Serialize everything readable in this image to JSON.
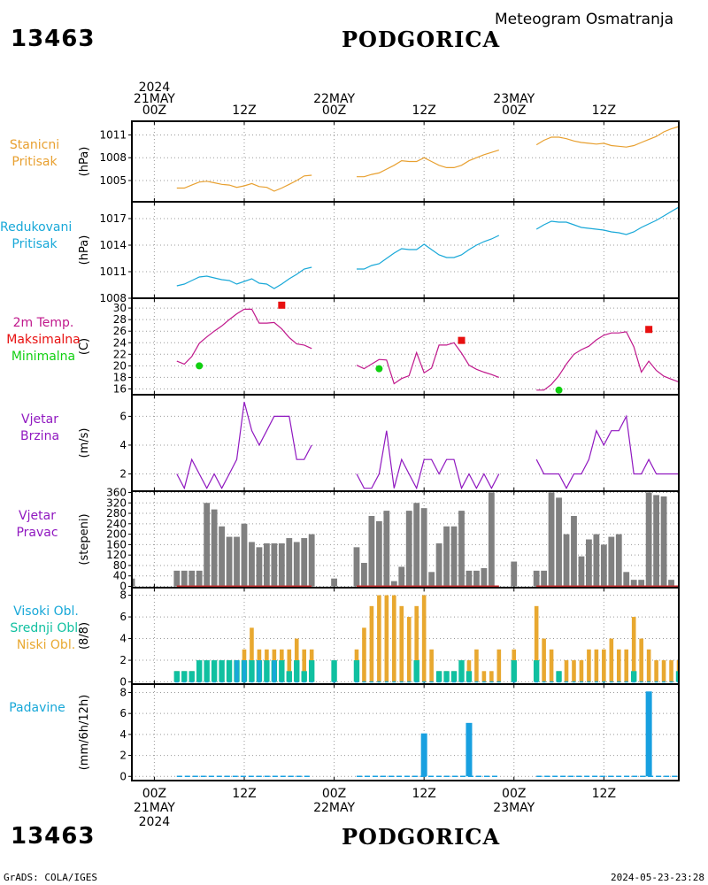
{
  "header": {
    "station_id": "13463",
    "city": "PODGORICA",
    "subtitle": "Meteogram Osmatranja"
  },
  "footer": {
    "station_id": "13463",
    "city": "PODGORICA",
    "credit": "GrADS: COLA/IGES",
    "timestamp": "2024-05-23-23:28"
  },
  "time_axis": {
    "top_labels": [
      {
        "t": 0,
        "lines": [
          "2024",
          "21MAY",
          "00Z"
        ]
      },
      {
        "t": 12,
        "lines": [
          "12Z"
        ]
      },
      {
        "t": 24,
        "lines": [
          "22MAY",
          "00Z"
        ]
      },
      {
        "t": 36,
        "lines": [
          "12Z"
        ]
      },
      {
        "t": 48,
        "lines": [
          "23MAY",
          "00Z"
        ]
      },
      {
        "t": 60,
        "lines": [
          "12Z"
        ]
      }
    ],
    "bottom_labels": [
      {
        "t": 0,
        "lines": [
          "00Z",
          "21MAY",
          "2024"
        ]
      },
      {
        "t": 12,
        "lines": [
          "12Z"
        ]
      },
      {
        "t": 24,
        "lines": [
          "00Z",
          "22MAY"
        ]
      },
      {
        "t": 36,
        "lines": [
          "12Z"
        ]
      },
      {
        "t": 48,
        "lines": [
          "00Z",
          "23MAY"
        ]
      },
      {
        "t": 60,
        "lines": [
          "12Z"
        ]
      }
    ],
    "range": [
      -3,
      70
    ]
  },
  "colors": {
    "station_pressure": "#e8a030",
    "reduced_pressure": "#18a8d8",
    "temperature": "#c0188c",
    "tmax": "#e81010",
    "tmin": "#10d010",
    "wind_speed": "#9018c0",
    "wind_dir": "#808080",
    "wind_dir_base": "#c83030",
    "high_clouds": "#18a8d8",
    "mid_clouds": "#10c0a0",
    "low_clouds": "#e8a830",
    "precip": "#18a0e0"
  },
  "panels": {
    "station_pressure": {
      "label_lines": [
        "Stanicni",
        "Pritisak"
      ],
      "ylabel": "(hPa)"
    },
    "reduced_pressure": {
      "label_lines": [
        "Redukovani",
        "Pritisak"
      ],
      "ylabel": "(hPa)"
    },
    "temperature": {
      "label_lines": [
        "2m Temp.",
        "Maksimalna",
        "Minimalna"
      ],
      "ylabel": "(C)"
    },
    "wind_speed": {
      "label_lines": [
        "Vjetar",
        "Brzina"
      ],
      "ylabel": "(m/s)"
    },
    "wind_dir": {
      "label_lines": [
        "Vjetar",
        "Pravac"
      ],
      "ylabel": "(stepeni)"
    },
    "clouds": {
      "label_lines": [
        "Visoki Obl.",
        "Srednji Obl.",
        "Niski Obl."
      ],
      "ylabel": "(8/8)"
    },
    "precip": {
      "label_lines": [
        "Padavine"
      ],
      "ylabel": "(mm/6h/12h)"
    }
  },
  "chart_data": [
    {
      "type": "line",
      "name": "Stanicni Pritisak",
      "ylabel": "(hPa)",
      "ylim": [
        1002.2,
        1012.8
      ],
      "yticks": [
        1005,
        1008,
        1011
      ],
      "segments": [
        {
          "x": [
            3,
            4,
            5,
            6,
            7,
            8,
            9,
            10,
            11,
            12,
            13,
            14,
            15,
            16,
            17,
            18,
            19,
            20,
            21
          ],
          "y": [
            1004.0,
            1004.0,
            1004.4,
            1004.8,
            1004.9,
            1004.7,
            1004.5,
            1004.4,
            1004.1,
            1004.3,
            1004.6,
            1004.2,
            1004.1,
            1003.6,
            1004.0,
            1004.5,
            1005.0,
            1005.6,
            1005.7
          ]
        },
        {
          "x": [
            27,
            28,
            29,
            30,
            31,
            32,
            33,
            34,
            35,
            36,
            37,
            38,
            39,
            40,
            41,
            42,
            43,
            44,
            45,
            46
          ],
          "y": [
            1005.5,
            1005.5,
            1005.8,
            1006.0,
            1006.5,
            1007.0,
            1007.6,
            1007.5,
            1007.5,
            1008.0,
            1007.5,
            1007.0,
            1006.7,
            1006.7,
            1007.0,
            1007.6,
            1008.0,
            1008.4,
            1008.7,
            1009.0
          ]
        },
        {
          "x": [
            51,
            52,
            53,
            54,
            55,
            56,
            57,
            58,
            59,
            60,
            61,
            62,
            63,
            64,
            65,
            66,
            67,
            68,
            69,
            70
          ],
          "y": [
            1009.7,
            1010.3,
            1010.7,
            1010.7,
            1010.5,
            1010.2,
            1010.0,
            1009.9,
            1009.8,
            1009.9,
            1009.6,
            1009.5,
            1009.4,
            1009.6,
            1010.0,
            1010.4,
            1010.8,
            1011.4,
            1011.8,
            1012.1
          ]
        }
      ]
    },
    {
      "type": "line",
      "name": "Redukovani Pritisak",
      "ylabel": "(hPa)",
      "ylim": [
        1008,
        1018.9
      ],
      "yticks": [
        1008,
        1011,
        1014,
        1017
      ],
      "segments": [
        {
          "x": [
            3,
            4,
            5,
            6,
            7,
            8,
            9,
            10,
            11,
            12,
            13,
            14,
            15,
            16,
            17,
            18,
            19,
            20,
            21
          ],
          "y": [
            1009.4,
            1009.6,
            1010.0,
            1010.4,
            1010.5,
            1010.3,
            1010.1,
            1010.0,
            1009.6,
            1009.9,
            1010.2,
            1009.7,
            1009.6,
            1009.1,
            1009.6,
            1010.2,
            1010.7,
            1011.3,
            1011.5
          ]
        },
        {
          "x": [
            27,
            28,
            29,
            30,
            31,
            32,
            33,
            34,
            35,
            36,
            37,
            38,
            39,
            40,
            41,
            42,
            43,
            44,
            45,
            46
          ],
          "y": [
            1011.3,
            1011.3,
            1011.7,
            1011.9,
            1012.5,
            1013.1,
            1013.6,
            1013.5,
            1013.5,
            1014.1,
            1013.5,
            1012.9,
            1012.6,
            1012.6,
            1012.9,
            1013.5,
            1014.0,
            1014.4,
            1014.7,
            1015.1
          ]
        },
        {
          "x": [
            51,
            52,
            53,
            54,
            55,
            56,
            57,
            58,
            59,
            60,
            61,
            62,
            63,
            64,
            65,
            66,
            67,
            68,
            69,
            70
          ],
          "y": [
            1015.8,
            1016.3,
            1016.7,
            1016.6,
            1016.6,
            1016.3,
            1016.0,
            1015.9,
            1015.8,
            1015.7,
            1015.5,
            1015.4,
            1015.2,
            1015.5,
            1016.0,
            1016.4,
            1016.8,
            1017.3,
            1017.8,
            1018.3
          ]
        }
      ]
    },
    {
      "type": "line",
      "name": "2m Temp.",
      "ylabel": "(C)",
      "ylim": [
        15,
        31.7
      ],
      "yticks": [
        16,
        18,
        20,
        22,
        24,
        26,
        28,
        30
      ],
      "segments": [
        {
          "x": [
            3,
            4,
            5,
            6,
            7,
            8,
            9,
            10,
            11,
            12,
            13,
            14,
            15,
            16,
            17,
            18,
            19,
            20,
            21
          ],
          "y": [
            20.8,
            20.3,
            21.6,
            23.9,
            25.0,
            26.0,
            26.9,
            28.0,
            29.0,
            29.8,
            29.8,
            27.4,
            27.4,
            27.5,
            26.4,
            24.9,
            23.8,
            23.6,
            23.0
          ]
        },
        {
          "x": [
            27,
            28,
            29,
            30,
            31,
            32,
            33,
            34,
            35,
            36,
            37,
            38,
            39,
            40,
            41,
            42,
            43,
            44,
            45,
            46
          ],
          "y": [
            20.1,
            19.5,
            20.3,
            21.1,
            21.0,
            16.9,
            17.8,
            18.3,
            22.3,
            18.8,
            19.6,
            23.6,
            23.6,
            24.0,
            22.2,
            20.1,
            19.4,
            18.9,
            18.5,
            18.0
          ]
        },
        {
          "x": [
            51,
            52,
            53,
            54,
            55,
            56,
            57,
            58,
            59,
            60,
            61,
            62,
            63,
            64,
            65,
            66,
            67,
            68,
            69,
            70
          ],
          "y": [
            15.8,
            15.8,
            16.8,
            18.3,
            20.3,
            22.0,
            22.8,
            23.4,
            24.5,
            25.3,
            25.7,
            25.7,
            25.9,
            23.3,
            18.9,
            20.8,
            19.2,
            18.2,
            17.7,
            17.2
          ]
        }
      ],
      "tmax": [
        {
          "x": 17,
          "y": 30.5
        },
        {
          "x": 41,
          "y": 24.4
        },
        {
          "x": 66,
          "y": 26.3
        }
      ],
      "tmin": [
        {
          "x": 6,
          "y": 20.0
        },
        {
          "x": 30,
          "y": 19.5
        },
        {
          "x": 54,
          "y": 15.8
        }
      ]
    },
    {
      "type": "line",
      "name": "Vjetar Brzina",
      "ylabel": "(m/s)",
      "ylim": [
        0.8,
        7.5
      ],
      "yticks": [
        2,
        4,
        6
      ],
      "segments": [
        {
          "x": [
            3,
            4,
            5,
            6,
            7,
            8,
            9,
            10,
            11,
            12,
            13,
            14,
            15,
            16,
            17,
            18,
            19,
            20,
            21
          ],
          "y": [
            2,
            1,
            3,
            2,
            1,
            2,
            1,
            2,
            3,
            7,
            5,
            4,
            5,
            6,
            6,
            6,
            3,
            3,
            4
          ]
        },
        {
          "x": [
            27,
            28,
            29,
            30,
            31,
            32,
            33,
            34,
            35,
            36,
            37,
            38,
            39,
            40,
            41,
            42,
            43,
            44,
            45,
            46
          ],
          "y": [
            2,
            1,
            1,
            2,
            5,
            1,
            3,
            2,
            1,
            3,
            3,
            2,
            3,
            3,
            1,
            2,
            1,
            2,
            1,
            2
          ]
        },
        {
          "x": [
            51,
            52,
            53,
            54,
            55,
            56,
            57,
            58,
            59,
            60,
            61,
            62,
            63,
            64,
            65,
            66,
            67,
            68,
            69,
            70
          ],
          "y": [
            3,
            2,
            2,
            2,
            1,
            2,
            2,
            3,
            5,
            4,
            5,
            5,
            6,
            2,
            2,
            3,
            2,
            2,
            2,
            2
          ]
        }
      ]
    },
    {
      "type": "bar",
      "name": "Vjetar Pravac",
      "ylabel": "(stepeni)",
      "ylim": [
        -5,
        365
      ],
      "yticks": [
        0,
        40,
        80,
        120,
        160,
        200,
        240,
        280,
        320,
        360
      ],
      "x": [
        -3,
        3,
        4,
        5,
        6,
        7,
        8,
        9,
        10,
        11,
        12,
        13,
        14,
        15,
        16,
        17,
        18,
        19,
        20,
        21,
        24,
        27,
        28,
        29,
        30,
        31,
        32,
        33,
        34,
        35,
        36,
        37,
        38,
        39,
        40,
        41,
        42,
        43,
        44,
        45,
        46,
        48,
        51,
        52,
        53,
        54,
        55,
        56,
        57,
        58,
        59,
        60,
        61,
        62,
        63,
        64,
        65,
        66,
        67,
        68,
        69,
        70
      ],
      "values": [
        30,
        60,
        60,
        60,
        60,
        320,
        295,
        230,
        190,
        190,
        240,
        170,
        150,
        165,
        165,
        165,
        185,
        170,
        185,
        200,
        30,
        150,
        90,
        270,
        250,
        290,
        20,
        75,
        290,
        320,
        300,
        55,
        165,
        230,
        230,
        290,
        60,
        60,
        70,
        360,
        0,
        95,
        60,
        60,
        360,
        340,
        200,
        270,
        115,
        180,
        200,
        160,
        190,
        200,
        55,
        25,
        25,
        360,
        350,
        345,
        25,
        0
      ]
    },
    {
      "type": "bar",
      "name": "Oblacnost",
      "ylabel": "(8/8)",
      "ylim": [
        -0.2,
        8.7
      ],
      "yticks": [
        0,
        2,
        4,
        6,
        8
      ],
      "x": [
        3,
        4,
        5,
        6,
        7,
        8,
        9,
        10,
        11,
        12,
        13,
        14,
        15,
        16,
        17,
        18,
        19,
        20,
        21,
        24,
        27,
        28,
        29,
        30,
        31,
        32,
        33,
        34,
        35,
        36,
        37,
        38,
        39,
        40,
        41,
        42,
        43,
        44,
        45,
        46,
        48,
        51,
        52,
        53,
        54,
        55,
        56,
        57,
        58,
        59,
        60,
        61,
        62,
        63,
        64,
        65,
        66,
        67,
        68,
        69,
        70
      ],
      "series": [
        {
          "name": "Visoki Obl.",
          "values": [
            0,
            0,
            0,
            0,
            0,
            0,
            0,
            0,
            2,
            2,
            0,
            2,
            0,
            2,
            0,
            0,
            0,
            0,
            0,
            0,
            0,
            0,
            0,
            0,
            0,
            0,
            0,
            0,
            0,
            0,
            0,
            0,
            0,
            0,
            0,
            0,
            0,
            0,
            0,
            0,
            0,
            0,
            0,
            0,
            0,
            0,
            0,
            0,
            0,
            0,
            0,
            0,
            0,
            0,
            0,
            0,
            0,
            0,
            0,
            0,
            0
          ]
        },
        {
          "name": "Srednji Obl.",
          "values": [
            1,
            1,
            1,
            2,
            2,
            2,
            2,
            2,
            2,
            2,
            2,
            2,
            2,
            2,
            2,
            1,
            2,
            1,
            2,
            2,
            2,
            0,
            0,
            0,
            0,
            0,
            0,
            0,
            2,
            0,
            0,
            1,
            1,
            1,
            2,
            1,
            0,
            0,
            0,
            0,
            2,
            2,
            0,
            0,
            1,
            0,
            0,
            0,
            0,
            0,
            0,
            0,
            0,
            0,
            1,
            0,
            0,
            0,
            0,
            0,
            1
          ]
        },
        {
          "name": "Niski Obl.",
          "values": [
            1,
            1,
            1,
            1,
            1,
            1,
            1,
            2,
            2,
            3,
            5,
            3,
            3,
            3,
            3,
            3,
            4,
            3,
            3,
            1,
            3,
            5,
            7,
            8,
            8,
            8,
            7,
            6,
            7,
            8,
            3,
            1,
            1,
            1,
            1,
            2,
            3,
            1,
            1,
            3,
            3,
            7,
            4,
            3,
            1,
            2,
            2,
            2,
            3,
            3,
            3,
            4,
            3,
            3,
            6,
            4,
            3,
            2,
            2,
            2,
            2
          ]
        }
      ]
    },
    {
      "type": "bar",
      "name": "Padavine",
      "ylabel": "(mm/6h/12h)",
      "ylim": [
        -0.4,
        8.8
      ],
      "yticks": [
        0,
        2,
        4,
        6,
        8
      ],
      "x": [
        36,
        42,
        66
      ],
      "values": [
        4.1,
        5.1,
        8.1
      ]
    }
  ]
}
